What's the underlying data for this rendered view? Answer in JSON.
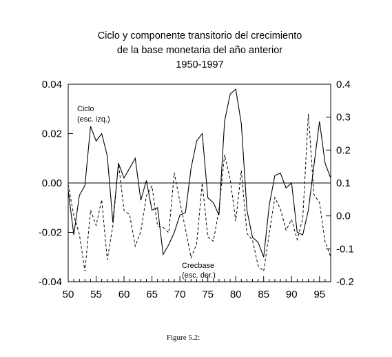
{
  "chart_data": {
    "type": "line",
    "title": [
      "Ciclo y componente transitorio del crecimiento",
      "de la base monetaria del año anterior",
      "1950-1997"
    ],
    "caption": "Figure 5.2:",
    "x": [
      1950,
      1951,
      1952,
      1953,
      1954,
      1955,
      1956,
      1957,
      1958,
      1959,
      1960,
      1961,
      1962,
      1963,
      1964,
      1965,
      1966,
      1967,
      1968,
      1969,
      1970,
      1971,
      1972,
      1973,
      1974,
      1975,
      1976,
      1977,
      1978,
      1979,
      1980,
      1981,
      1982,
      1983,
      1984,
      1985,
      1986,
      1987,
      1988,
      1989,
      1990,
      1991,
      1992,
      1993,
      1994,
      1995,
      1996,
      1997
    ],
    "xlim": [
      1950,
      1997
    ],
    "x_ticks": [
      {
        "value": 1950,
        "label": "50"
      },
      {
        "value": 1955,
        "label": "55"
      },
      {
        "value": 1960,
        "label": "60"
      },
      {
        "value": 1965,
        "label": "65"
      },
      {
        "value": 1970,
        "label": "70"
      },
      {
        "value": 1975,
        "label": "75"
      },
      {
        "value": 1980,
        "label": "80"
      },
      {
        "value": 1985,
        "label": "85"
      },
      {
        "value": 1990,
        "label": "90"
      },
      {
        "value": 1995,
        "label": "95"
      }
    ],
    "y_left": {
      "ylim": [
        -0.04,
        0.04
      ],
      "ticks": [
        {
          "value": 0.04,
          "label": "0.04"
        },
        {
          "value": 0.02,
          "label": "0.02"
        },
        {
          "value": 0.0,
          "label": "0.00"
        },
        {
          "value": -0.02,
          "label": "-0.02"
        },
        {
          "value": -0.04,
          "label": "-0.04"
        }
      ]
    },
    "y_right": {
      "ylim": [
        -0.2,
        0.4
      ],
      "ticks": [
        {
          "value": 0.4,
          "label": "0.4"
        },
        {
          "value": 0.3,
          "label": "0.3"
        },
        {
          "value": 0.2,
          "label": "0.2"
        },
        {
          "value": 0.1,
          "label": "0.1"
        },
        {
          "value": 0.0,
          "label": "0.0"
        },
        {
          "value": -0.1,
          "label": "-0.1"
        },
        {
          "value": -0.2,
          "label": "-0.2"
        }
      ]
    },
    "reference_line": {
      "axis": "left",
      "value": 0.0
    },
    "series": [
      {
        "name": "Ciclo",
        "axis": "left",
        "style": "solid",
        "label_lines": [
          "Ciclo",
          "(esc. izq.)"
        ],
        "values": [
          -0.003,
          -0.021,
          -0.005,
          -0.001,
          0.023,
          0.017,
          0.02,
          0.011,
          -0.016,
          0.008,
          0.002,
          0.006,
          0.01,
          -0.007,
          0.001,
          -0.011,
          -0.01,
          -0.029,
          -0.025,
          -0.02,
          -0.013,
          -0.012,
          0.006,
          0.017,
          0.02,
          -0.006,
          -0.008,
          -0.013,
          0.025,
          0.036,
          0.038,
          0.024,
          -0.011,
          -0.022,
          -0.024,
          -0.03,
          -0.009,
          0.003,
          0.004,
          -0.002,
          0.0,
          -0.02,
          -0.021,
          -0.011,
          0.007,
          0.025,
          0.008,
          0.002
        ]
      },
      {
        "name": "Crecbase",
        "axis": "right",
        "style": "dashed",
        "label_lines": [
          "Crecbase",
          "(esc. der.)"
        ],
        "values": [
          0.095,
          0.001,
          -0.056,
          -0.168,
          0.018,
          -0.029,
          0.049,
          -0.133,
          -0.03,
          0.161,
          0.016,
          0.004,
          -0.092,
          -0.047,
          0.061,
          0.091,
          -0.031,
          -0.035,
          -0.051,
          0.131,
          0.043,
          -0.04,
          -0.127,
          -0.085,
          0.1,
          -0.064,
          -0.077,
          0.02,
          0.186,
          0.112,
          -0.016,
          0.138,
          -0.053,
          -0.074,
          -0.151,
          -0.168,
          -0.053,
          0.056,
          0.021,
          -0.043,
          -0.011,
          -0.072,
          -0.008,
          0.31,
          0.065,
          0.04,
          -0.078,
          -0.124
        ]
      }
    ],
    "grid": false,
    "legend": "none"
  }
}
